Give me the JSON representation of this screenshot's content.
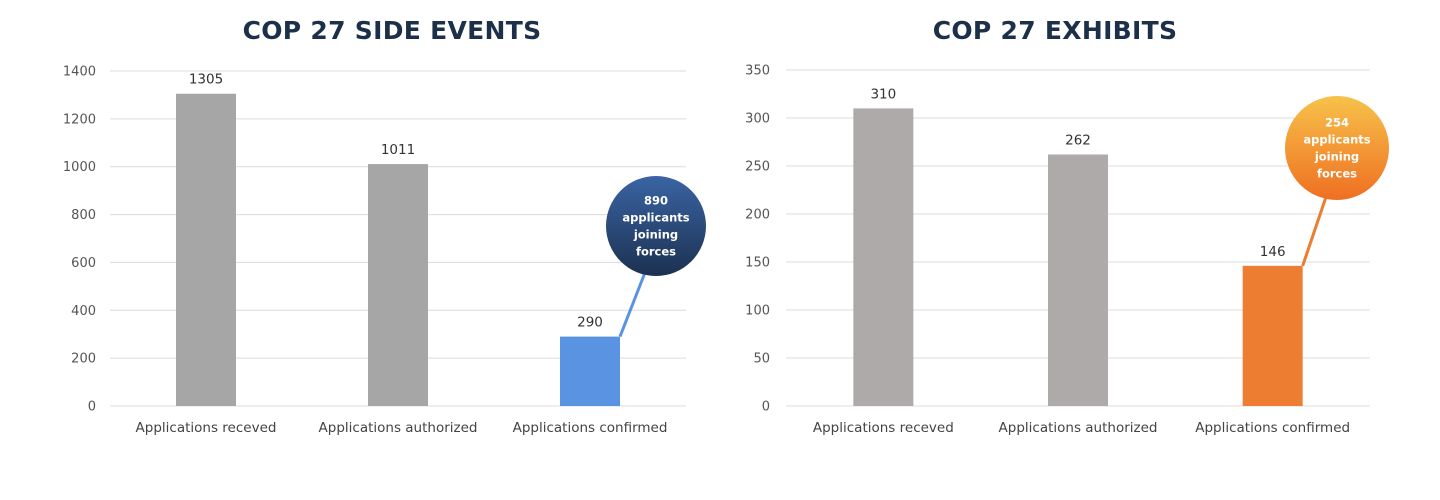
{
  "chart_data": [
    {
      "type": "bar",
      "title": "COP 27 SIDE EVENTS",
      "categories": [
        "Applications receved",
        "Applications authorized",
        "Applications confirmed"
      ],
      "values": [
        1305,
        1011,
        290
      ],
      "ylim": [
        0,
        1400
      ],
      "yticks": [
        0,
        200,
        400,
        600,
        800,
        1000,
        1200,
        1400
      ],
      "bar_colors": [
        "#a6a6a6",
        "#a6a6a6",
        "#5b93e3"
      ],
      "grid": true,
      "callout": {
        "lines": [
          "890",
          "applicants",
          "joining",
          "forces"
        ],
        "target_index": 2,
        "color_top": "#3a64a4",
        "color_bottom": "#1c3150",
        "leader_color": "#5b93e3"
      }
    },
    {
      "type": "bar",
      "title": "COP 27 EXHIBITS",
      "categories": [
        "Applications receved",
        "Applications authorized",
        "Applications confirmed"
      ],
      "values": [
        310,
        262,
        146
      ],
      "ylim": [
        0,
        350
      ],
      "yticks": [
        0,
        50,
        100,
        150,
        200,
        250,
        300,
        350
      ],
      "bar_colors": [
        "#aeaaaa",
        "#aeaaaa",
        "#ed7d31"
      ],
      "grid": true,
      "callout": {
        "lines": [
          "254",
          "applicants",
          "joining",
          "forces"
        ],
        "target_index": 2,
        "color_top": "#f7c24a",
        "color_bottom": "#ef6f22",
        "leader_color": "#ed7d31"
      }
    }
  ]
}
